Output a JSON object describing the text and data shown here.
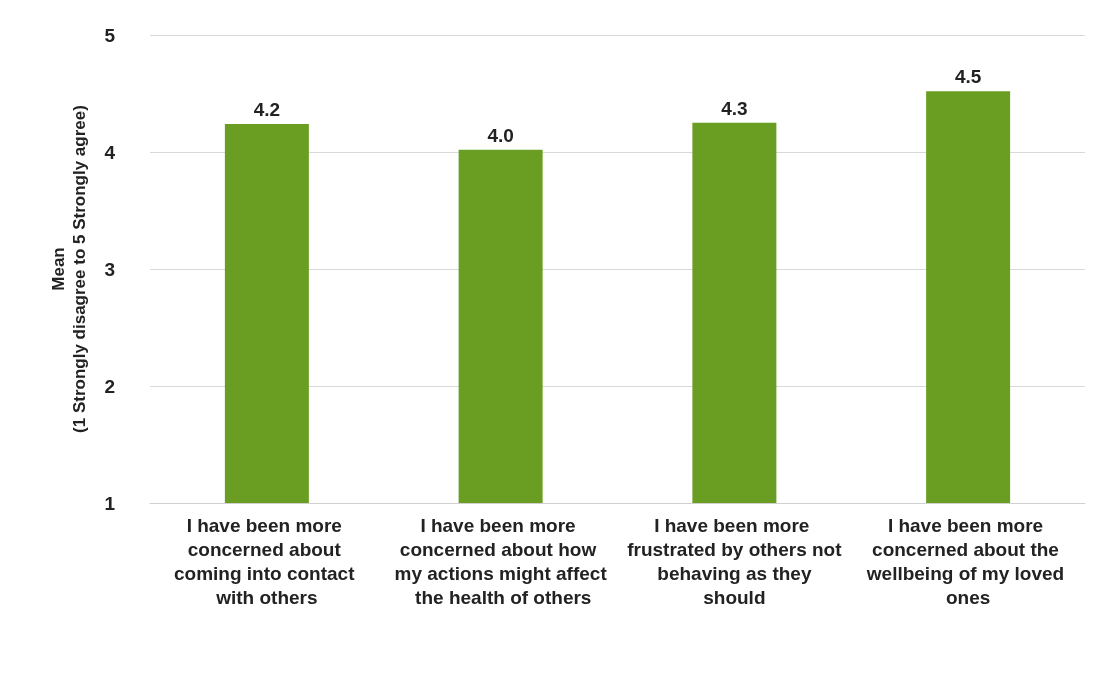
{
  "chart_data": {
    "type": "bar",
    "ylabel": "Mean\n(1 Strongly disagree to 5 Strongly agree)",
    "categories": [
      "I have been more concerned about coming into contact with others",
      "I have been more concerned about how my actions might affect the health of others",
      "I have been more frustrated by others not behaving as they should",
      "I have been more concerned about the wellbeing of my loved ones"
    ],
    "values": [
      4.24,
      4.02,
      4.25,
      4.52
    ],
    "value_labels": [
      "4.2",
      "4.0",
      "4.3",
      "4.5"
    ],
    "color": "#6a9e22",
    "ylim": [
      1,
      5
    ],
    "yticks": [
      1,
      2,
      3,
      4,
      5
    ],
    "grid": "y"
  }
}
